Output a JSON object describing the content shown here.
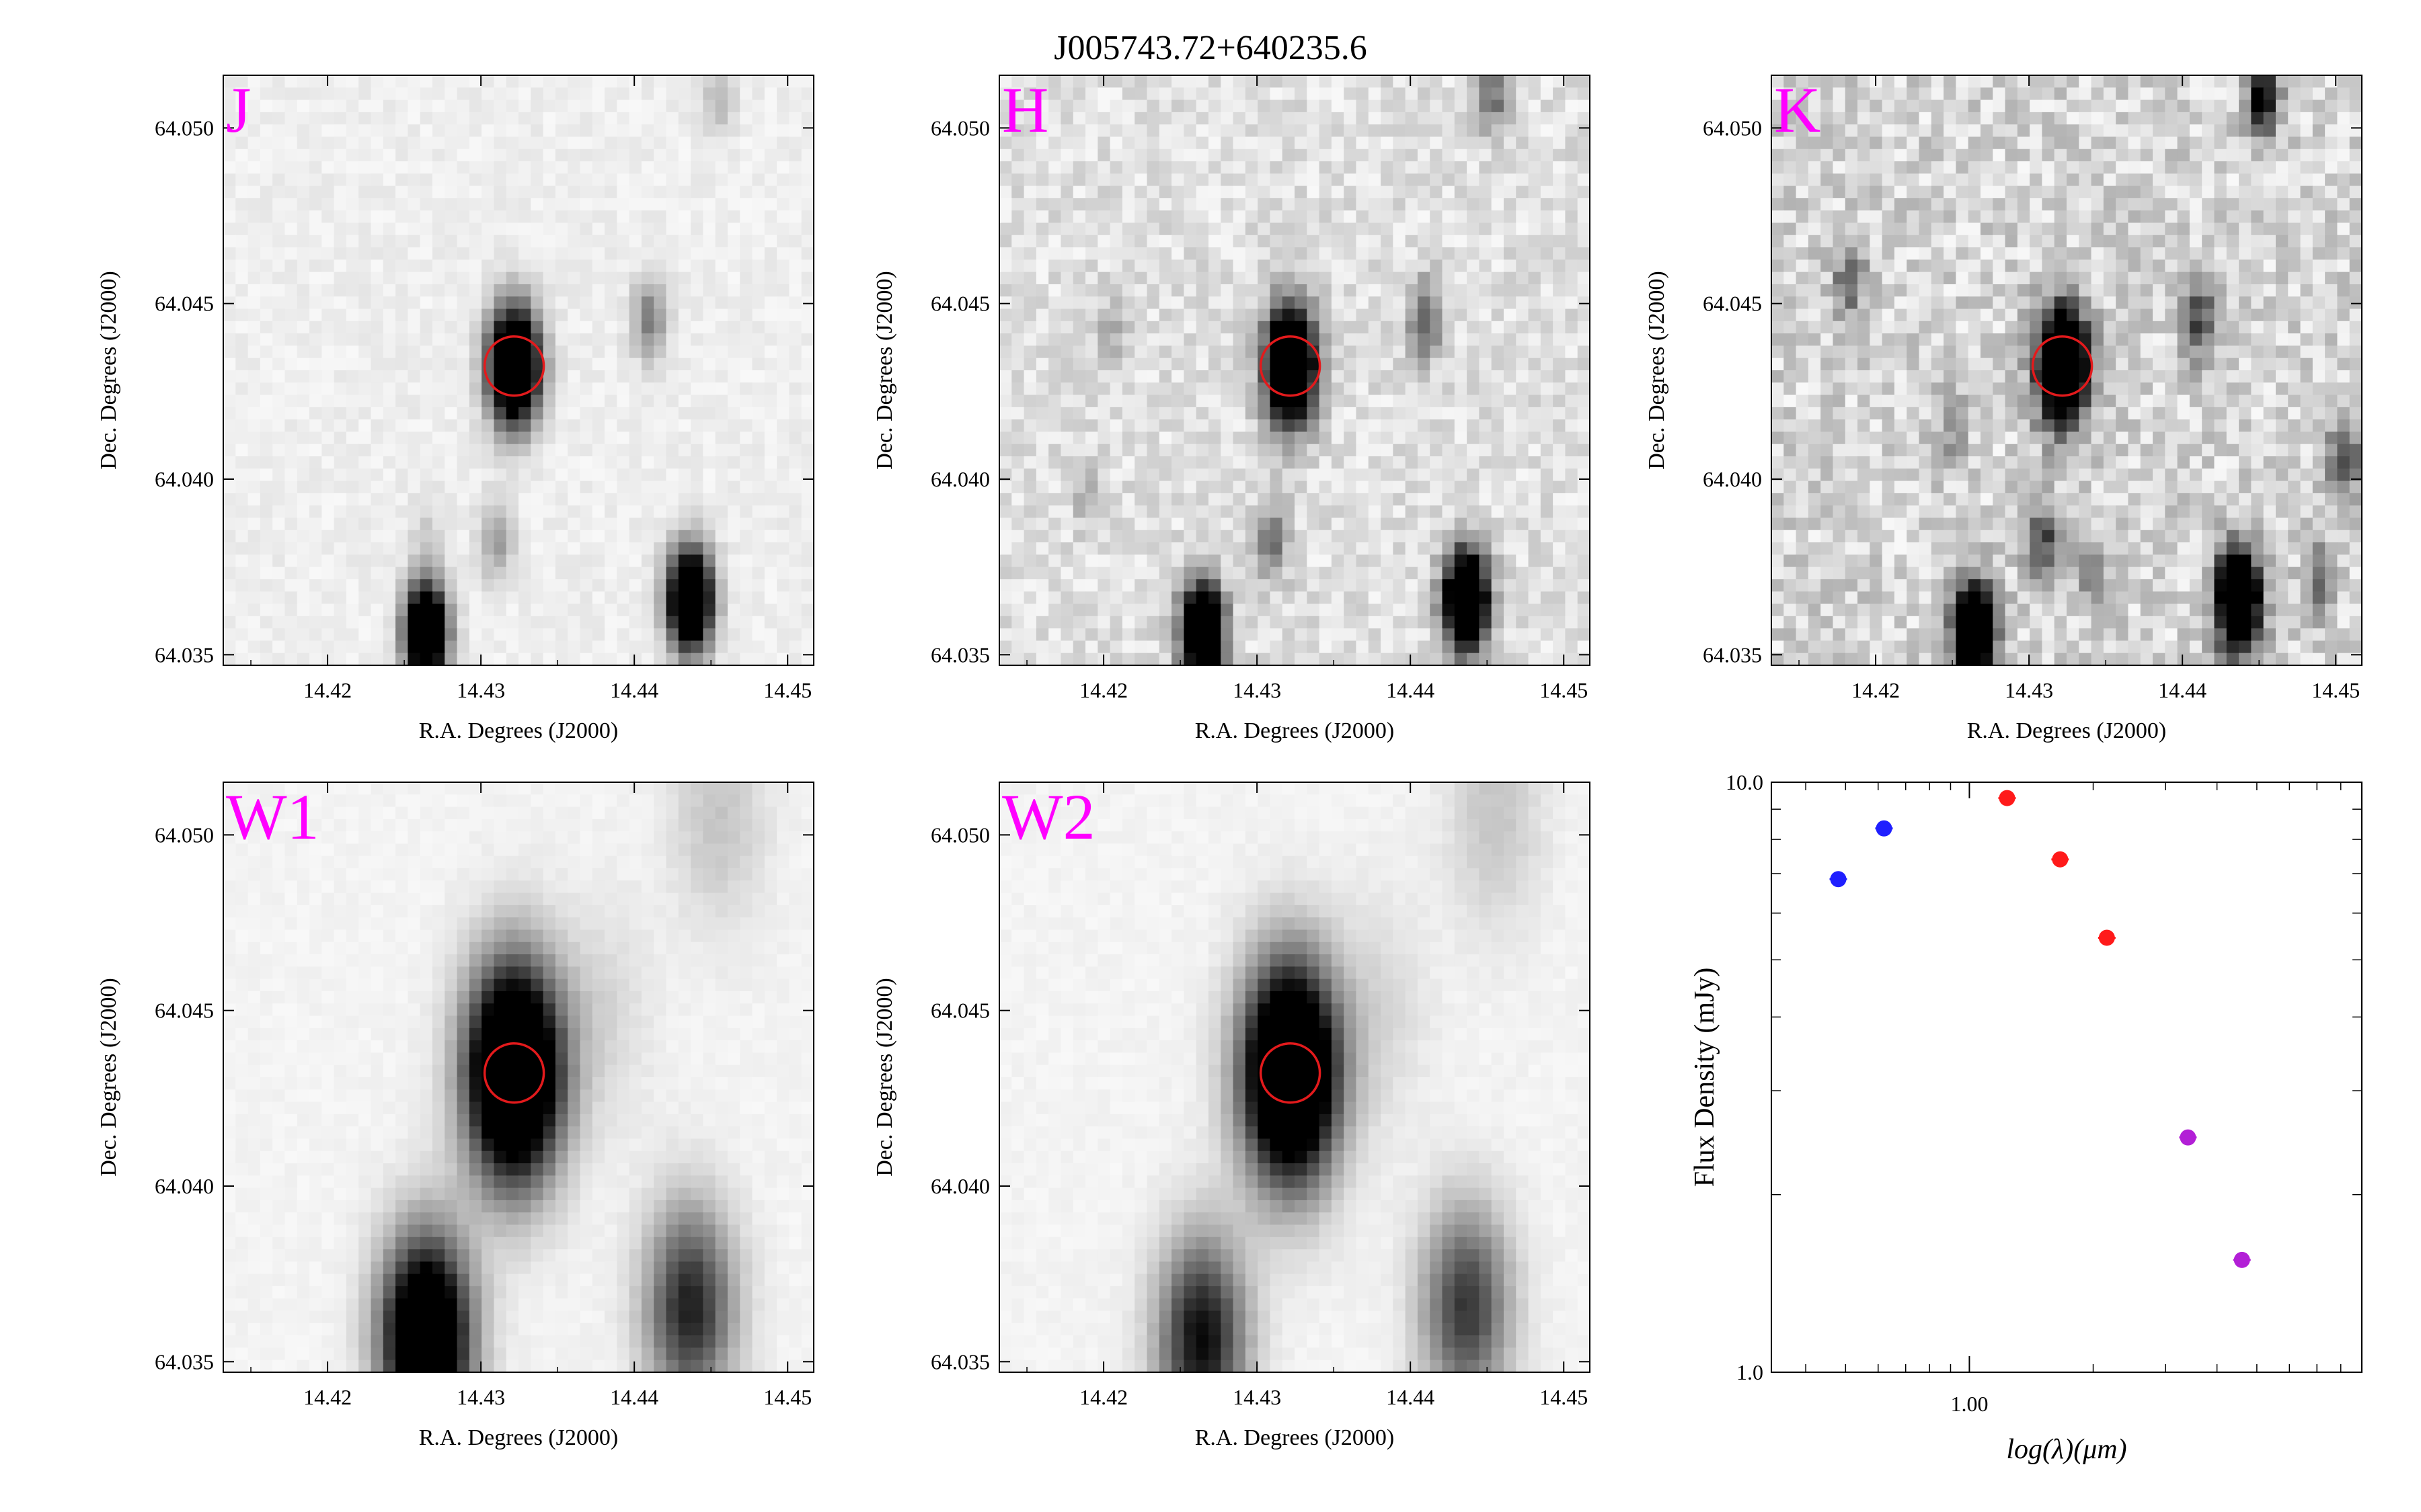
{
  "title": "J005743.72+640235.6",
  "colors": {
    "band_label": "#ff00ff",
    "aperture": "#e31a1c",
    "blue": "#1f1fff",
    "red": "#ff1a1a",
    "purple": "#b21fd6"
  },
  "chart_data": [
    {
      "type": "heatmap",
      "band": "J",
      "xlabel": "R.A. Degrees (J2000)",
      "ylabel": "Dec. Degrees (J2000)",
      "xlim": [
        14.4132,
        14.4517
      ],
      "ylim": [
        64.0347,
        64.0515
      ],
      "xticks": [
        "14.42",
        "14.43",
        "14.44",
        "14.45"
      ],
      "xtick_values": [
        14.42,
        14.43,
        14.44,
        14.45
      ],
      "yticks": [
        "64.035",
        "64.040",
        "64.045",
        "64.050"
      ],
      "ytick_values": [
        64.035,
        64.04,
        64.045,
        64.05
      ],
      "target": {
        "ra": 14.43217,
        "dec": 64.04322
      }
    },
    {
      "type": "heatmap",
      "band": "H",
      "xlabel": "R.A. Degrees (J2000)",
      "ylabel": "Dec. Degrees (J2000)",
      "xlim": [
        14.4132,
        14.4517
      ],
      "ylim": [
        64.0347,
        64.0515
      ],
      "xticks": [
        "14.42",
        "14.43",
        "14.44",
        "14.45"
      ],
      "xtick_values": [
        14.42,
        14.43,
        14.44,
        14.45
      ],
      "yticks": [
        "64.035",
        "64.040",
        "64.045",
        "64.050"
      ],
      "ytick_values": [
        64.035,
        64.04,
        64.045,
        64.05
      ],
      "target": {
        "ra": 14.43217,
        "dec": 64.04322
      }
    },
    {
      "type": "heatmap",
      "band": "K",
      "xlabel": "R.A. Degrees (J2000)",
      "ylabel": "Dec. Degrees (J2000)",
      "xlim": [
        14.4132,
        14.4517
      ],
      "ylim": [
        64.0347,
        64.0515
      ],
      "xticks": [
        "14.42",
        "14.43",
        "14.44",
        "14.45"
      ],
      "xtick_values": [
        14.42,
        14.43,
        14.44,
        14.45
      ],
      "yticks": [
        "64.035",
        "64.040",
        "64.045",
        "64.050"
      ],
      "ytick_values": [
        64.035,
        64.04,
        64.045,
        64.05
      ],
      "target": {
        "ra": 14.43217,
        "dec": 64.04322
      }
    },
    {
      "type": "heatmap",
      "band": "W1",
      "xlabel": "R.A. Degrees (J2000)",
      "ylabel": "Dec. Degrees (J2000)",
      "xlim": [
        14.4132,
        14.4517
      ],
      "ylim": [
        64.0347,
        64.0515
      ],
      "xticks": [
        "14.42",
        "14.43",
        "14.44",
        "14.45"
      ],
      "xtick_values": [
        14.42,
        14.43,
        14.44,
        14.45
      ],
      "yticks": [
        "64.035",
        "64.040",
        "64.045",
        "64.050"
      ],
      "ytick_values": [
        64.035,
        64.04,
        64.045,
        64.05
      ],
      "target": {
        "ra": 14.43217,
        "dec": 64.04322
      }
    },
    {
      "type": "heatmap",
      "band": "W2",
      "xlabel": "R.A. Degrees (J2000)",
      "ylabel": "Dec. Degrees (J2000)",
      "xlim": [
        14.4132,
        14.4517
      ],
      "ylim": [
        64.0347,
        64.0515
      ],
      "xticks": [
        "14.42",
        "14.43",
        "14.44",
        "14.45"
      ],
      "xtick_values": [
        14.42,
        14.43,
        14.44,
        14.45
      ],
      "yticks": [
        "64.035",
        "64.040",
        "64.045",
        "64.050"
      ],
      "ytick_values": [
        64.035,
        64.04,
        64.045,
        64.05
      ],
      "target": {
        "ra": 14.43217,
        "dec": 64.04322
      }
    },
    {
      "type": "scatter",
      "xlabel": "log(λ)(μm)",
      "ylabel": "Flux Density (mJy)",
      "xscale": "log",
      "yscale": "log",
      "xlim": [
        0.33,
        9.0
      ],
      "ylim": [
        1.0,
        10.0
      ],
      "xticks": [
        "1.00"
      ],
      "xtick_values": [
        1.0
      ],
      "yticks": [
        "1.0",
        "10.0"
      ],
      "ytick_values": [
        1.0,
        10.0
      ],
      "grid": false,
      "series": [
        {
          "color": "#1f1fff",
          "x": [
            0.48,
            0.62
          ],
          "y": [
            6.85,
            8.35
          ]
        },
        {
          "color": "#ff1a1a",
          "x": [
            1.235,
            1.662,
            2.159
          ],
          "y": [
            9.4,
            7.4,
            5.45
          ]
        },
        {
          "color": "#b21fd6",
          "x": [
            3.4,
            4.6
          ],
          "y": [
            2.5,
            1.55
          ]
        }
      ]
    }
  ]
}
